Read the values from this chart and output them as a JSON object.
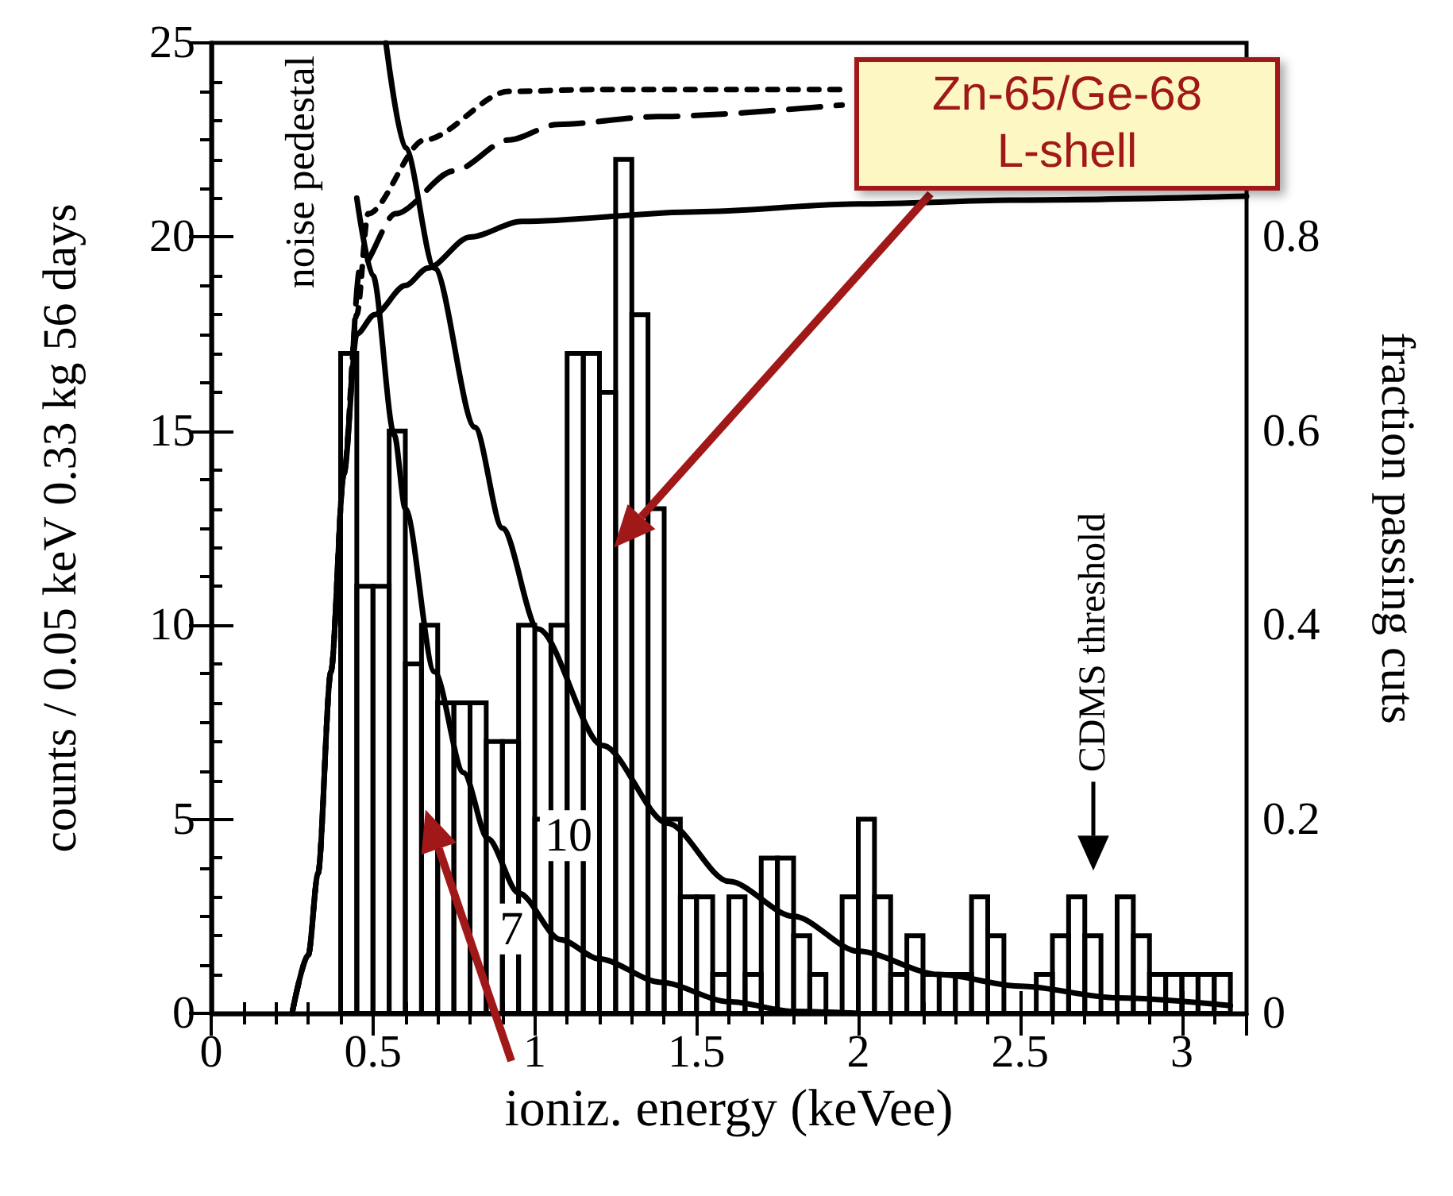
{
  "chart_data": {
    "type": "histogram",
    "xlabel": "ioniz. energy (keVee)",
    "ylabel": "counts / 0.05 keV 0.33 kg 56 days",
    "y2label": "fraction passing cuts",
    "xlim": [
      0,
      3.2
    ],
    "xticks": [
      0,
      0.5,
      1,
      1.5,
      2,
      2.5,
      3
    ],
    "ylim": [
      0,
      25
    ],
    "yticks": [
      0,
      5,
      10,
      15,
      20,
      25
    ],
    "y2lim": [
      0,
      1
    ],
    "y2ticks": [
      0,
      0.2,
      0.4,
      0.6,
      0.8
    ],
    "grid": false,
    "marker": "none",
    "series": [
      {
        "color": "#000000",
        "bins": [
          0.4,
          0.45,
          0.5,
          0.55,
          0.6,
          0.65,
          0.7,
          0.75,
          0.8,
          0.85,
          0.9,
          0.95,
          1.0,
          1.05,
          1.1,
          1.15,
          1.2,
          1.25,
          1.3,
          1.35,
          1.4,
          1.45,
          1.5,
          1.55,
          1.6,
          1.65,
          1.7,
          1.75,
          1.8,
          1.85,
          1.9,
          1.95,
          2.0,
          2.05,
          2.1,
          2.15,
          2.2,
          2.25,
          2.3,
          2.35,
          2.4,
          2.45,
          2.5,
          2.55,
          2.6,
          2.65,
          2.7,
          2.75,
          2.8,
          2.85,
          2.9,
          2.95,
          3.0,
          3.05,
          3.1,
          3.15
        ],
        "values": [
          17,
          11,
          11,
          15,
          9,
          10,
          8,
          8,
          8,
          7,
          7,
          10,
          5,
          10,
          17,
          17,
          16,
          22,
          18,
          13,
          5,
          3,
          3,
          1,
          3,
          1,
          4,
          4,
          2,
          1,
          0,
          3,
          5,
          3,
          1,
          2,
          1,
          1,
          1,
          3,
          2,
          0,
          0,
          1,
          2,
          3,
          2,
          0,
          3,
          2,
          1,
          1,
          1,
          1,
          1
        ]
      },
      {
        "type": "line",
        "color": "#000000",
        "line_style": "solid",
        "x": [
          0.45,
          0.5,
          0.566,
          0.6,
          0.69,
          0.78,
          0.855,
          0.95,
          1.08,
          1.2,
          1.39,
          1.6,
          1.8,
          2.0
        ],
        "values": [
          21,
          19,
          14.9,
          13,
          8.8,
          6.2,
          4.5,
          3.1,
          1.9,
          1.4,
          0.8,
          0.3,
          0.05,
          0
        ]
      },
      {
        "type": "line",
        "color": "#000000",
        "line_style": "solid",
        "x": [
          0.54,
          0.6,
          0.69,
          0.815,
          0.9,
          1.01,
          1.21,
          1.41,
          1.6,
          1.8,
          2.0,
          2.25,
          2.5,
          2.8,
          3.15
        ],
        "values": [
          25,
          22.3,
          19.2,
          15.1,
          12.5,
          9.9,
          6.9,
          4.9,
          3.4,
          2.5,
          1.6,
          1.0,
          0.7,
          0.4,
          0.2
        ]
      },
      {
        "type": "line",
        "axis": "y2",
        "color": "#000000",
        "line_style": "solid",
        "x": [
          0.25,
          0.3,
          0.33,
          0.37,
          0.41,
          0.45,
          0.505,
          0.6,
          0.67,
          0.8,
          0.96,
          1.5,
          2.0,
          2.5,
          3.2
        ],
        "values": [
          0,
          0.06,
          0.144,
          0.352,
          0.556,
          0.7,
          0.72,
          0.75,
          0.768,
          0.8,
          0.816,
          0.826,
          0.834,
          0.838,
          0.842
        ]
      },
      {
        "type": "line",
        "axis": "y2",
        "color": "#000000",
        "line_style": "dashed",
        "x": [
          0.25,
          0.3,
          0.33,
          0.37,
          0.41,
          0.46,
          0.57,
          0.75,
          0.92,
          1.07,
          1.38,
          1.95
        ],
        "values": [
          0,
          0.06,
          0.144,
          0.352,
          0.556,
          0.768,
          0.824,
          0.868,
          0.9,
          0.916,
          0.924,
          0.936
        ]
      },
      {
        "type": "line",
        "axis": "y2",
        "color": "#000000",
        "line_style": "dotted",
        "x": [
          0.25,
          0.3,
          0.33,
          0.37,
          0.41,
          0.45,
          0.485,
          0.66,
          0.92,
          1.2,
          1.6,
          1.95
        ],
        "values": [
          0,
          0.06,
          0.144,
          0.352,
          0.556,
          0.72,
          0.824,
          0.9,
          0.95,
          0.952,
          0.952,
          0.952
        ]
      }
    ],
    "annotations": [
      "noise pedestal",
      "Zn-65/Ge-68 L-shell",
      "CDMS threshold",
      "10",
      "7"
    ]
  }
}
